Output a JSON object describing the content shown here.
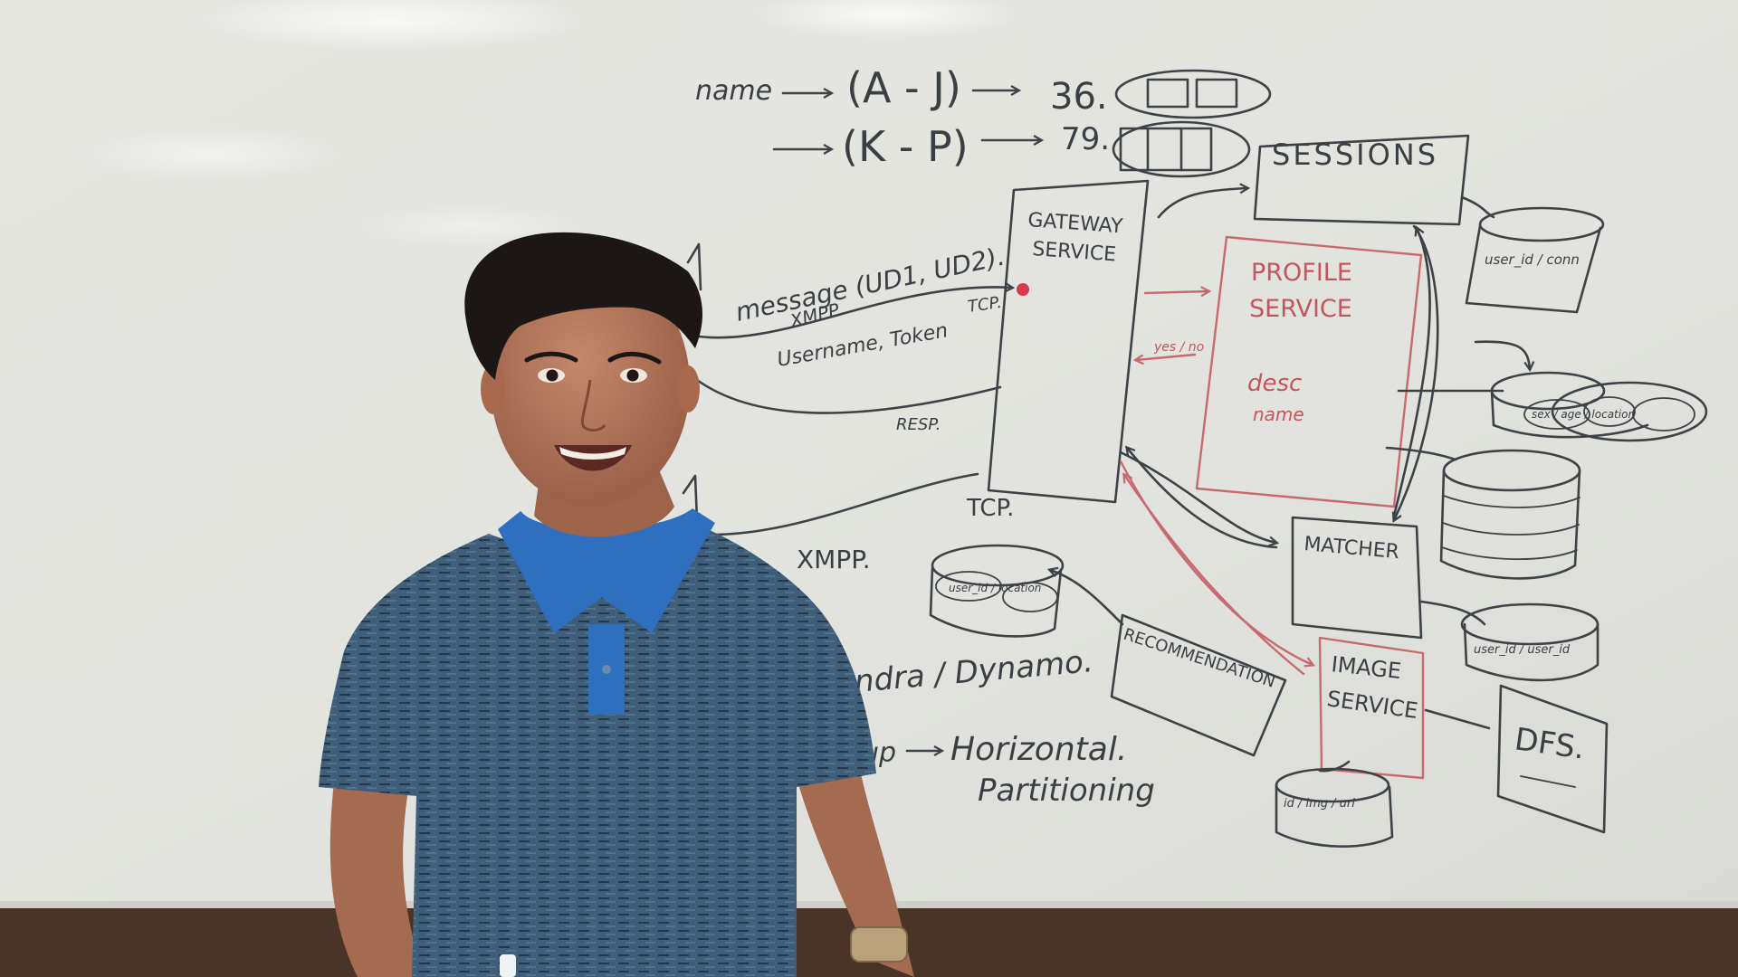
{
  "scene": {
    "colors": {
      "board": "#e4e4df",
      "marker_black": "#3d4246",
      "marker_red": "#c4555e",
      "trim": "#4a3428",
      "shirt": "#3e5d78",
      "collar": "#2f6fbf"
    }
  },
  "whiteboard": {
    "top": {
      "name": "name",
      "range_aj": "(A - J)",
      "count_aj": "36.",
      "range_kp": "(K - P)",
      "count_kp": "79."
    },
    "gateway": {
      "line1": "GATEWAY",
      "line2": "SERVICE"
    },
    "sessions": "SESSIONS",
    "sessions_db": "user_id / conn",
    "profile": {
      "line1": "PROFILE",
      "line2": "SERVICE",
      "note1": "desc",
      "note2": "name"
    },
    "profile_reply": "yes / no",
    "links": {
      "message": "message (UD1, UD2).",
      "xmpp": "XMPP.",
      "tcp": "TCP.",
      "credentials": "Username, Token",
      "resp": "RESP.",
      "tcp2": "TCP.",
      "xmpp2": "XMPP."
    },
    "matcher": "MATCHER",
    "matcher_db": "user_id / user_id",
    "image": {
      "line1": "IMAGE",
      "line2": "SERVICE"
    },
    "image_db": "id / img / url",
    "dfs": "DFS.",
    "recommendation": "RECOMMENDATION",
    "rec_db": "user_id / location",
    "profile_db": "sex / age / location",
    "storage": {
      "dbs": "ndra / Dynamo.",
      "sharding": "up",
      "horizontal": "Horizontal.",
      "partitioning": "Partitioning"
    }
  }
}
